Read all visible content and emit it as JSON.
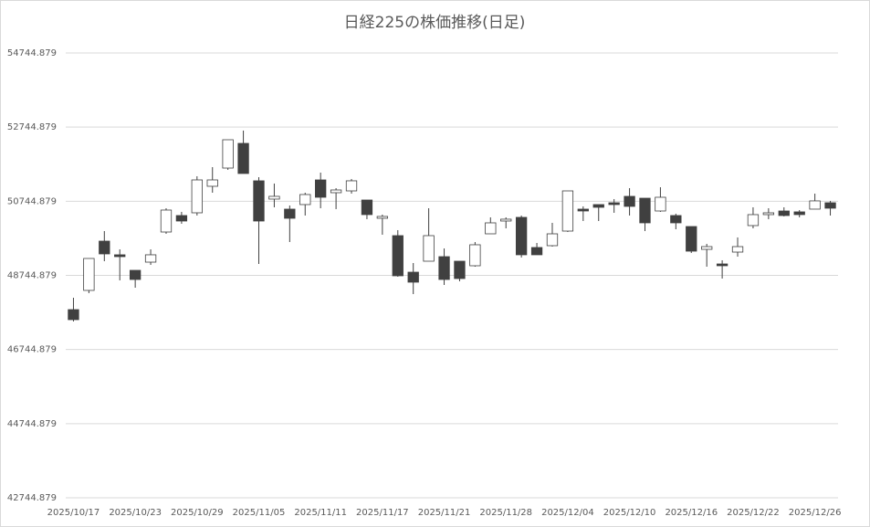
{
  "chart_data": {
    "type": "candlestick",
    "title": "日経225の株価推移(日足)",
    "categories": [
      "2025/10/17",
      null,
      null,
      null,
      "2025/10/23",
      null,
      null,
      null,
      "2025/10/29",
      null,
      null,
      null,
      "2025/11/05",
      null,
      null,
      null,
      "2025/11/11",
      null,
      null,
      null,
      "2025/11/17",
      null,
      null,
      null,
      "2025/11/21",
      null,
      null,
      null,
      "2025/11/28",
      null,
      null,
      null,
      "2025/12/04",
      null,
      null,
      null,
      "2025/12/10",
      null,
      null,
      null,
      "2025/12/16",
      null,
      null,
      null,
      "2025/12/22",
      null,
      null,
      null,
      "2025/12/26",
      null
    ],
    "open": [
      47821,
      48339,
      49669,
      49300,
      48881,
      49102,
      49915,
      50359,
      50433,
      51148,
      51640,
      52306,
      51296,
      50803,
      50532,
      50655,
      51320,
      50975,
      51024,
      50778,
      50285,
      49817,
      48831,
      49127,
      49250,
      49127,
      49004,
      49866,
      50211,
      50310,
      49497,
      49546,
      49940,
      50532,
      50655,
      50704,
      50877,
      50827,
      50482,
      50359,
      50063,
      49447,
      49053,
      49373,
      50088,
      50384,
      50482,
      50458,
      50532,
      50704
    ],
    "high": [
      48141,
      49201,
      49940,
      49447,
      48881,
      49447,
      50556,
      50458,
      51419,
      51665,
      52404,
      52651,
      51394,
      51222,
      50630,
      50975,
      51517,
      51098,
      51345,
      50778,
      50384,
      49965,
      49078,
      50556,
      49472,
      49127,
      49644,
      50310,
      50310,
      50359,
      49620,
      50162,
      51024,
      50606,
      50655,
      50803,
      51098,
      50827,
      51123,
      50409,
      50063,
      49595,
      49152,
      49768,
      50581,
      50556,
      50581,
      50507,
      50950,
      50754
    ],
    "low": [
      47501,
      48265,
      49127,
      48610,
      48412,
      49028,
      49866,
      50137,
      50359,
      50975,
      51591,
      51493,
      49053,
      50581,
      49644,
      50359,
      50556,
      50532,
      50950,
      50261,
      49842,
      48708,
      48240,
      49127,
      48486,
      48585,
      48979,
      49866,
      50014,
      49226,
      49300,
      49521,
      49915,
      50211,
      50211,
      50433,
      50359,
      49940,
      50458,
      49989,
      49349,
      48979,
      48659,
      49250,
      50014,
      50261,
      50335,
      50310,
      50532,
      50359
    ],
    "close": [
      47550,
      49201,
      49324,
      49250,
      48634,
      49300,
      50507,
      50211,
      51320,
      51320,
      52404,
      51493,
      50211,
      50877,
      50285,
      50926,
      50852,
      51049,
      51296,
      50384,
      50335,
      48733,
      48561,
      49817,
      48634,
      48659,
      49571,
      50162,
      50261,
      49300,
      49300,
      49866,
      51024,
      50482,
      50581,
      50655,
      50606,
      50162,
      50852,
      50162,
      49398,
      49521,
      49004,
      49521,
      50384,
      50433,
      50359,
      50384,
      50754,
      50557
    ],
    "up_color": "#ffffff",
    "down_color": "#404040",
    "wick_color": "#404040",
    "ylim": [
      42744.879,
      54744.879
    ],
    "yticks": [
      42744.879,
      44744.879,
      46744.879,
      48744.879,
      50744.879,
      52744.879,
      54744.879
    ],
    "grid": true
  }
}
